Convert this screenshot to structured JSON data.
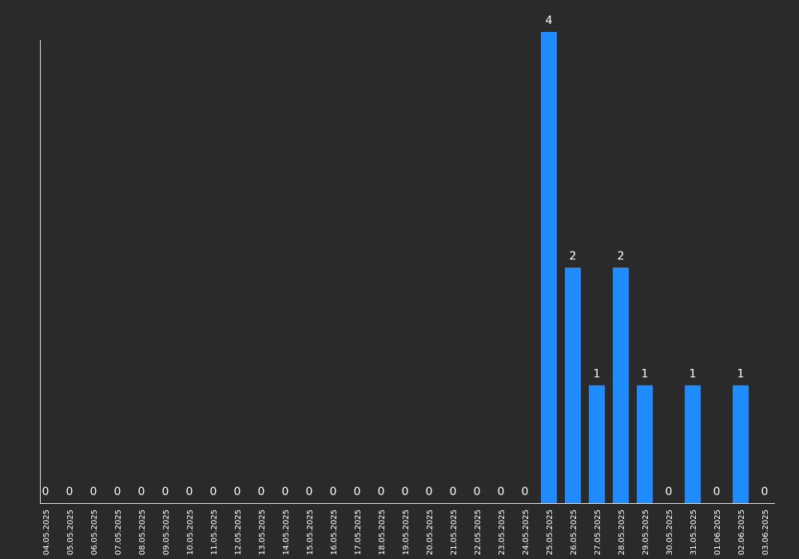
{
  "chart_data": {
    "type": "bar",
    "categories": [
      "04.05.2025",
      "05.05.2025",
      "06.05.2025",
      "07.05.2025",
      "08.05.2025",
      "09.05.2025",
      "10.05.2025",
      "11.05.2025",
      "12.05.2025",
      "13.05.2025",
      "14.05.2025",
      "15.05.2025",
      "16.05.2025",
      "17.05.2025",
      "18.05.2025",
      "19.05.2025",
      "20.05.2025",
      "21.05.2025",
      "22.05.2025",
      "23.05.2025",
      "24.05.2025",
      "25.05.2025",
      "26.05.2025",
      "27.05.2025",
      "28.05.2025",
      "29.05.2025",
      "30.05.2025",
      "31.05.2025",
      "01.06.2025",
      "02.06.2025",
      "03.06.2025"
    ],
    "values": [
      0,
      0,
      0,
      0,
      0,
      0,
      0,
      0,
      0,
      0,
      0,
      0,
      0,
      0,
      0,
      0,
      0,
      0,
      0,
      0,
      0,
      4,
      2,
      1,
      2,
      1,
      0,
      1,
      0,
      1,
      0
    ],
    "title": "",
    "xlabel": "",
    "ylabel": "",
    "ylim": [
      0,
      4
    ],
    "grid": false,
    "legend": "none",
    "data_labels": true,
    "colors": {
      "background": "#2a2a2a",
      "bar": "#1e8cff",
      "axis": "#e0e0e0",
      "text": "#ffffff"
    }
  }
}
